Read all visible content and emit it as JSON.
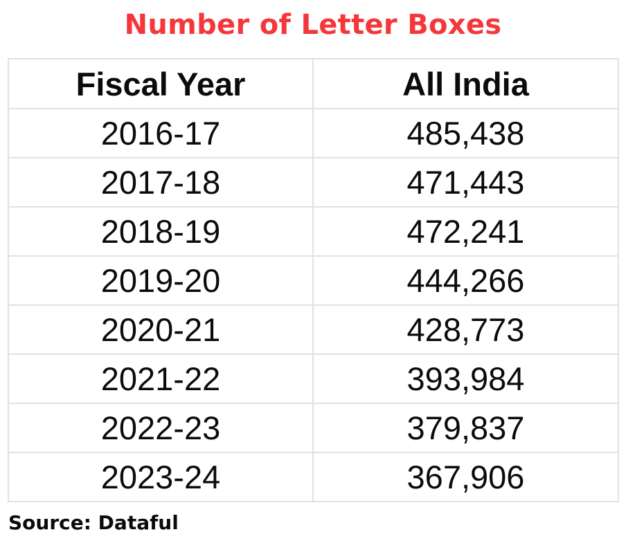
{
  "chart_data": {
    "type": "table",
    "title": "Number of Letter Boxes",
    "columns": [
      "Fiscal Year",
      "All India"
    ],
    "rows": [
      [
        "2016-17",
        "485,438"
      ],
      [
        "2017-18",
        "471,443"
      ],
      [
        "2018-19",
        "472,241"
      ],
      [
        "2019-20",
        "444,266"
      ],
      [
        "2020-21",
        "428,773"
      ],
      [
        "2021-22",
        "393,984"
      ],
      [
        "2022-23",
        "379,837"
      ],
      [
        "2023-24",
        "367,906"
      ]
    ],
    "source": "Source: Dataful"
  },
  "colors": {
    "title": "#f5373b",
    "text": "#0b0b0b",
    "grid": "#e1e1e1"
  }
}
